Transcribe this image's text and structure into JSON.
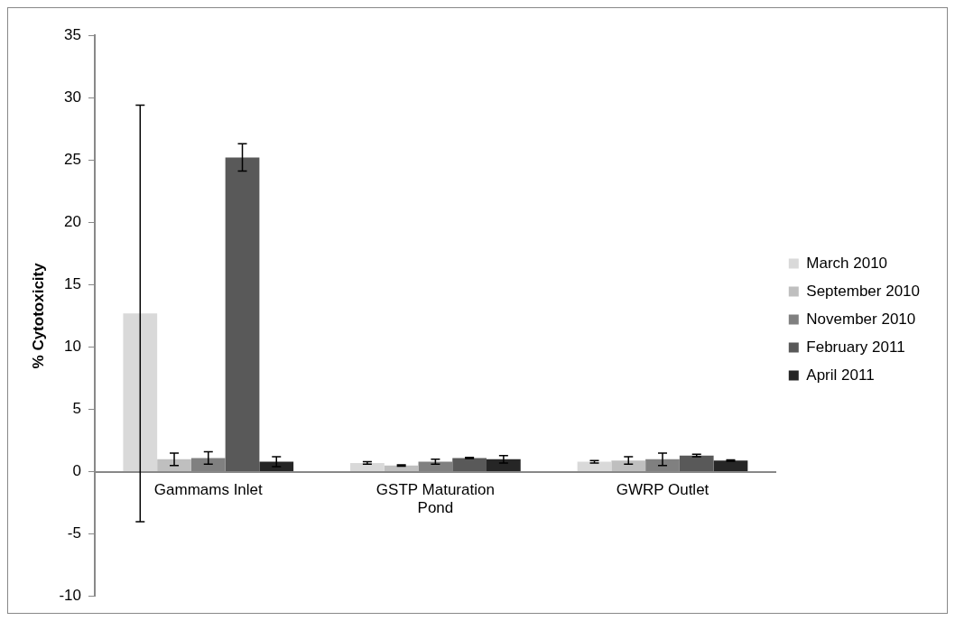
{
  "chart_data": {
    "type": "bar",
    "ylabel": "% Cytotoxicity",
    "categories": [
      "Gammams Inlet",
      "GSTP Maturation Pond",
      "GWRP Outlet"
    ],
    "series": [
      {
        "name": "March 2010",
        "color": "#d9d9d9",
        "values": [
          12.7,
          0.7,
          0.8
        ],
        "errors": [
          16.7,
          0.1,
          0.1
        ]
      },
      {
        "name": "September 2010",
        "color": "#bfbfbf",
        "values": [
          1.0,
          0.5,
          0.9
        ],
        "errors": [
          0.5,
          0.05,
          0.3
        ]
      },
      {
        "name": "November 2010",
        "color": "#808080",
        "values": [
          1.1,
          0.8,
          1.0
        ],
        "errors": [
          0.5,
          0.2,
          0.5
        ]
      },
      {
        "name": "February 2011",
        "color": "#595959",
        "values": [
          25.2,
          1.1,
          1.3
        ],
        "errors": [
          1.1,
          0.05,
          0.1
        ]
      },
      {
        "name": "April 2011",
        "color": "#262626",
        "values": [
          0.8,
          1.0,
          0.9
        ],
        "errors": [
          0.4,
          0.3,
          0.05
        ]
      }
    ],
    "ylim": [
      -10,
      35
    ],
    "yticks": [
      -10,
      -5,
      0,
      5,
      10,
      15,
      20,
      25,
      30,
      35
    ],
    "grid": false,
    "legend": "right"
  }
}
